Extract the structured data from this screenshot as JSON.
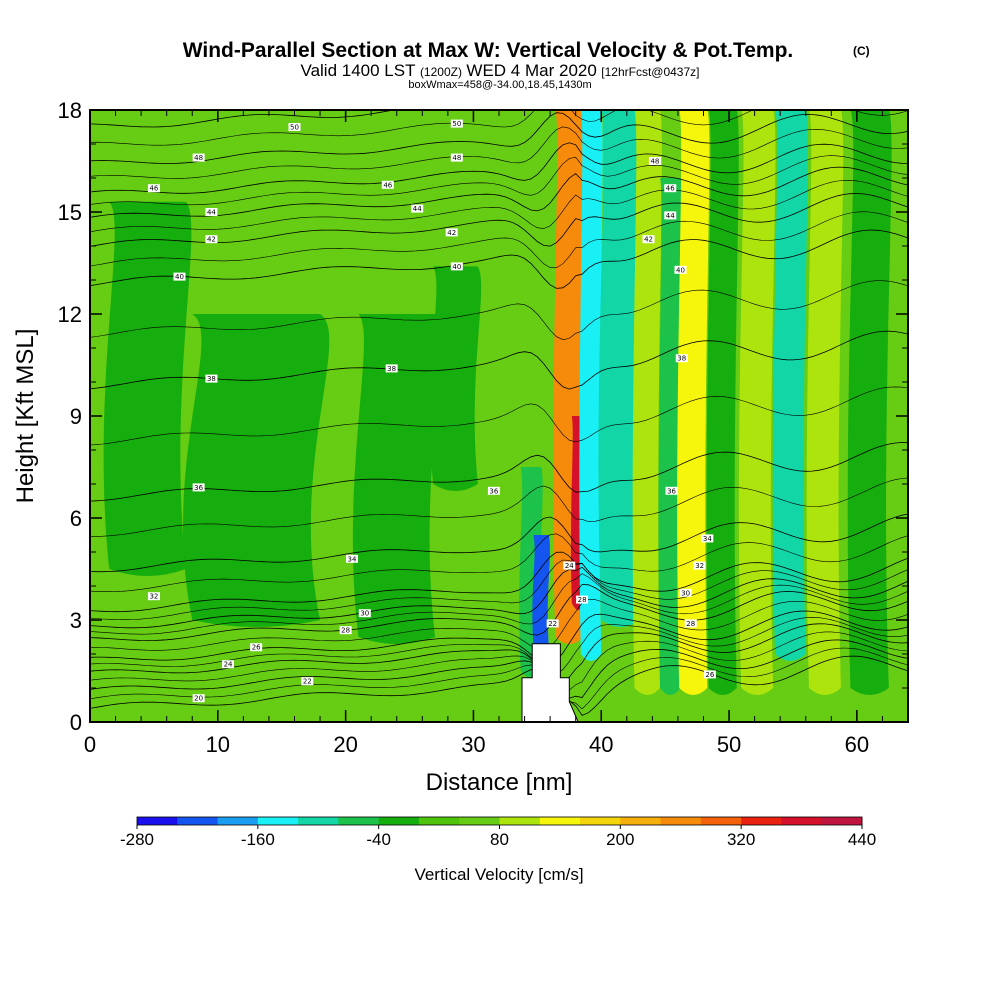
{
  "header": {
    "title": "Wind-Parallel Section at Max W: Vertical Velocity & Pot.Temp.",
    "title_units": "(C)",
    "valid_prefix": "Valid 1400 LST",
    "valid_utc": "(1200Z)",
    "valid_date": "WED 4 Mar 2020",
    "forecast": "[12hrFcst@0437z]",
    "box_info": "boxWmax=458@-34.00,18.45,1430m"
  },
  "colors": {
    "c_m280": "#1a10ee",
    "c_m240": "#1455f0",
    "c_m200": "#1a9cf0",
    "c_m160": "#18f0f5",
    "c_m120": "#12d6a6",
    "c_m80": "#1cc24a",
    "c_m40": "#16ad0e",
    "c_0": "#4ec40c",
    "c_40": "#66cc14",
    "c_80": "#aee40e",
    "c_120": "#f6f60c",
    "c_160": "#f4d40a",
    "c_200": "#f6b00c",
    "c_240": "#f68a0a",
    "c_280": "#f4620c",
    "c_320": "#ea2010",
    "c_360": "#d4102a",
    "c_400": "#c01440",
    "c_440": "#9c0a6a",
    "terrain": "#ffffff",
    "contour": "#000000"
  },
  "chart_data": {
    "type": "heatmap",
    "title": "Wind-Parallel Section at Max W: Vertical Velocity & Pot.Temp.",
    "xlabel": "Distance [nm]",
    "ylabel": "Height [Kft MSL]",
    "xlim": [
      0,
      64
    ],
    "ylim": [
      0,
      18
    ],
    "x_ticks": [
      0,
      10,
      20,
      30,
      40,
      50,
      60
    ],
    "y_ticks": [
      0,
      3,
      6,
      9,
      12,
      15,
      18
    ],
    "colorbar": {
      "label": "Vertical Velocity [cm/s]",
      "levels": [
        -280,
        -240,
        -200,
        -160,
        -120,
        -80,
        -40,
        0,
        40,
        80,
        120,
        160,
        200,
        240,
        280,
        320,
        360,
        400,
        440
      ],
      "tick_labels": [
        "-280",
        "-160",
        "-40",
        "80",
        "200",
        "320",
        "440"
      ]
    },
    "max_w_cm_s": 458,
    "max_w_location": "-34.00,18.45,1430m",
    "vertical_velocity_bands": [
      {
        "x_center": 4.5,
        "width": 6,
        "y_from": 4.5,
        "y_to": 15.3,
        "w": -40
      },
      {
        "x_center": 13,
        "width": 10,
        "y_from": 3,
        "y_to": 12,
        "w": -40
      },
      {
        "x_center": 24,
        "width": 6,
        "y_from": 2.5,
        "y_to": 12,
        "w": -40
      },
      {
        "x_center": 28.6,
        "width": 3.5,
        "y_from": 7,
        "y_to": 13.4,
        "w": -40
      },
      {
        "x_center": 34.5,
        "width": 1.6,
        "y_from": 1.5,
        "y_to": 7.5,
        "w": -80
      },
      {
        "x_center": 35.3,
        "width": 1.2,
        "y_from": 2.2,
        "y_to": 5.5,
        "w": -240
      },
      {
        "x_center": 37.5,
        "width": 2.2,
        "y_from": 2.5,
        "y_to": 18,
        "w": 240
      },
      {
        "x_center": 38.2,
        "width": 1.0,
        "y_from": 3.5,
        "y_to": 9,
        "w": 360
      },
      {
        "x_center": 39.2,
        "width": 1.6,
        "y_from": 2,
        "y_to": 18,
        "w": -160
      },
      {
        "x_center": 41.5,
        "width": 3,
        "y_from": 3,
        "y_to": 18,
        "w": -120
      },
      {
        "x_center": 43.6,
        "width": 2,
        "y_from": 1,
        "y_to": 18,
        "w": 80
      },
      {
        "x_center": 45.4,
        "width": 1.6,
        "y_from": 1,
        "y_to": 16,
        "w": -80
      },
      {
        "x_center": 47.2,
        "width": 2.2,
        "y_from": 1,
        "y_to": 18,
        "w": 120
      },
      {
        "x_center": 49.5,
        "width": 2.2,
        "y_from": 1,
        "y_to": 18,
        "w": -40
      },
      {
        "x_center": 52.2,
        "width": 2.5,
        "y_from": 1,
        "y_to": 18,
        "w": 80
      },
      {
        "x_center": 54.8,
        "width": 2.4,
        "y_from": 2,
        "y_to": 18,
        "w": -120
      },
      {
        "x_center": 57.5,
        "width": 2.5,
        "y_from": 1,
        "y_to": 18,
        "w": 80
      },
      {
        "x_center": 61,
        "width": 3,
        "y_from": 1,
        "y_to": 18,
        "w": -40
      }
    ],
    "terrain_profile": {
      "x": [
        33.2,
        33.8,
        33.8,
        34.6,
        34.6,
        36.8,
        36.8,
        37.5,
        37.5,
        38.2
      ],
      "y": [
        0,
        0,
        1.3,
        1.3,
        2.3,
        2.3,
        1.3,
        1.3,
        0.6,
        0
      ]
    },
    "potential_temperature_contours": [
      {
        "label": "20",
        "y_left": 0.4,
        "label_at": [
          8.5,
          0.7
        ]
      },
      {
        "label": "22",
        "y_left": 0.9,
        "label_at": [
          17,
          1.2
        ]
      },
      {
        "label": "24",
        "y_left": 1.4,
        "label_at": [
          10.8,
          1.7
        ]
      },
      {
        "label": "26",
        "y_left": 1.8,
        "label_at": [
          13,
          2.2
        ]
      },
      {
        "label": "28",
        "y_left": 2.4,
        "label_at": [
          20,
          2.7
        ]
      },
      {
        "label": "30",
        "y_left": 2.8,
        "label_at": [
          21.5,
          3.2
        ]
      },
      {
        "label": "32",
        "y_left": 3.3,
        "label_at": [
          5,
          3.7
        ]
      },
      {
        "label": "34",
        "y_left": 4.5,
        "label_at": [
          20.5,
          4.8
        ]
      },
      {
        "label": "36",
        "y_left": 6.6,
        "label_at": [
          8.5,
          6.9
        ]
      },
      {
        "label": "38",
        "y_left": 9.9,
        "label_at": [
          9.5,
          10.1
        ]
      },
      {
        "label": "40",
        "y_left": 12.9,
        "label_at": [
          7,
          13.1
        ]
      },
      {
        "label": "42",
        "y_left": 14.0,
        "label_at": [
          9.5,
          14.2
        ]
      },
      {
        "label": "44",
        "y_left": 14.8,
        "label_at": [
          9.5,
          15.0
        ]
      },
      {
        "label": "46",
        "y_left": 15.5,
        "label_at": [
          5,
          15.7
        ]
      },
      {
        "label": "48",
        "y_left": 16.4,
        "label_at": [
          8.5,
          16.6
        ]
      },
      {
        "label": "50",
        "y_left": 17.5,
        "label_at": [
          16,
          17.5
        ]
      }
    ],
    "extra_contour_labels": [
      {
        "label": "36",
        "at": [
          31.6,
          6.8
        ]
      },
      {
        "label": "38",
        "at": [
          23.6,
          10.4
        ]
      },
      {
        "label": "40",
        "at": [
          28.7,
          13.4
        ]
      },
      {
        "label": "42",
        "at": [
          28.3,
          14.4
        ]
      },
      {
        "label": "44",
        "at": [
          25.6,
          15.1
        ]
      },
      {
        "label": "46",
        "at": [
          23.3,
          15.8
        ]
      },
      {
        "label": "48",
        "at": [
          28.7,
          16.6
        ]
      },
      {
        "label": "50",
        "at": [
          28.7,
          17.6
        ]
      },
      {
        "label": "24",
        "at": [
          37.5,
          4.6
        ]
      },
      {
        "label": "28",
        "at": [
          38.5,
          3.6
        ]
      },
      {
        "label": "22",
        "at": [
          36.2,
          2.9
        ]
      },
      {
        "label": "36",
        "at": [
          45.5,
          6.8
        ]
      },
      {
        "label": "38",
        "at": [
          46.3,
          10.7
        ]
      },
      {
        "label": "40",
        "at": [
          46.2,
          13.3
        ]
      },
      {
        "label": "42",
        "at": [
          43.7,
          14.2
        ]
      },
      {
        "label": "44",
        "at": [
          45.4,
          14.9
        ]
      },
      {
        "label": "46",
        "at": [
          45.4,
          15.7
        ]
      },
      {
        "label": "48",
        "at": [
          44.2,
          16.5
        ]
      },
      {
        "label": "34",
        "at": [
          48.3,
          5.4
        ]
      },
      {
        "label": "32",
        "at": [
          47.7,
          4.6
        ]
      },
      {
        "label": "30",
        "at": [
          46.6,
          3.8
        ]
      },
      {
        "label": "28",
        "at": [
          47,
          2.9
        ]
      },
      {
        "label": "26",
        "at": [
          48.5,
          1.4
        ]
      }
    ]
  }
}
